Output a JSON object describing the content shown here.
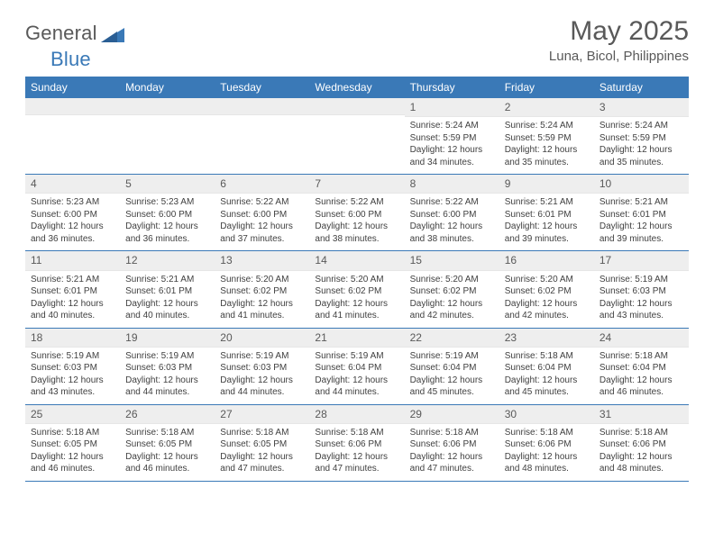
{
  "brand": {
    "name": "General",
    "accent": "Blue"
  },
  "title": "May 2025",
  "location": "Luna, Bicol, Philippines",
  "colors": {
    "header_bg": "#3a79b7",
    "header_text": "#ffffff",
    "grey_bg": "#eeeeee",
    "text": "#595959"
  },
  "layout": {
    "columns": 7,
    "rows": 5,
    "fonts": {
      "title_pt": 30,
      "location_pt": 15,
      "weekday_pt": 12,
      "body_pt": 10
    }
  },
  "weekdays": [
    "Sunday",
    "Monday",
    "Tuesday",
    "Wednesday",
    "Thursday",
    "Friday",
    "Saturday"
  ],
  "weeks": [
    [
      {
        "empty": true
      },
      {
        "empty": true
      },
      {
        "empty": true
      },
      {
        "empty": true
      },
      {
        "n": "1",
        "sr": "Sunrise: 5:24 AM",
        "ss": "Sunset: 5:59 PM",
        "dl1": "Daylight: 12 hours",
        "dl2": "and 34 minutes."
      },
      {
        "n": "2",
        "sr": "Sunrise: 5:24 AM",
        "ss": "Sunset: 5:59 PM",
        "dl1": "Daylight: 12 hours",
        "dl2": "and 35 minutes."
      },
      {
        "n": "3",
        "sr": "Sunrise: 5:24 AM",
        "ss": "Sunset: 5:59 PM",
        "dl1": "Daylight: 12 hours",
        "dl2": "and 35 minutes."
      }
    ],
    [
      {
        "n": "4",
        "sr": "Sunrise: 5:23 AM",
        "ss": "Sunset: 6:00 PM",
        "dl1": "Daylight: 12 hours",
        "dl2": "and 36 minutes."
      },
      {
        "n": "5",
        "sr": "Sunrise: 5:23 AM",
        "ss": "Sunset: 6:00 PM",
        "dl1": "Daylight: 12 hours",
        "dl2": "and 36 minutes."
      },
      {
        "n": "6",
        "sr": "Sunrise: 5:22 AM",
        "ss": "Sunset: 6:00 PM",
        "dl1": "Daylight: 12 hours",
        "dl2": "and 37 minutes."
      },
      {
        "n": "7",
        "sr": "Sunrise: 5:22 AM",
        "ss": "Sunset: 6:00 PM",
        "dl1": "Daylight: 12 hours",
        "dl2": "and 38 minutes."
      },
      {
        "n": "8",
        "sr": "Sunrise: 5:22 AM",
        "ss": "Sunset: 6:00 PM",
        "dl1": "Daylight: 12 hours",
        "dl2": "and 38 minutes."
      },
      {
        "n": "9",
        "sr": "Sunrise: 5:21 AM",
        "ss": "Sunset: 6:01 PM",
        "dl1": "Daylight: 12 hours",
        "dl2": "and 39 minutes."
      },
      {
        "n": "10",
        "sr": "Sunrise: 5:21 AM",
        "ss": "Sunset: 6:01 PM",
        "dl1": "Daylight: 12 hours",
        "dl2": "and 39 minutes."
      }
    ],
    [
      {
        "n": "11",
        "sr": "Sunrise: 5:21 AM",
        "ss": "Sunset: 6:01 PM",
        "dl1": "Daylight: 12 hours",
        "dl2": "and 40 minutes."
      },
      {
        "n": "12",
        "sr": "Sunrise: 5:21 AM",
        "ss": "Sunset: 6:01 PM",
        "dl1": "Daylight: 12 hours",
        "dl2": "and 40 minutes."
      },
      {
        "n": "13",
        "sr": "Sunrise: 5:20 AM",
        "ss": "Sunset: 6:02 PM",
        "dl1": "Daylight: 12 hours",
        "dl2": "and 41 minutes."
      },
      {
        "n": "14",
        "sr": "Sunrise: 5:20 AM",
        "ss": "Sunset: 6:02 PM",
        "dl1": "Daylight: 12 hours",
        "dl2": "and 41 minutes."
      },
      {
        "n": "15",
        "sr": "Sunrise: 5:20 AM",
        "ss": "Sunset: 6:02 PM",
        "dl1": "Daylight: 12 hours",
        "dl2": "and 42 minutes."
      },
      {
        "n": "16",
        "sr": "Sunrise: 5:20 AM",
        "ss": "Sunset: 6:02 PM",
        "dl1": "Daylight: 12 hours",
        "dl2": "and 42 minutes."
      },
      {
        "n": "17",
        "sr": "Sunrise: 5:19 AM",
        "ss": "Sunset: 6:03 PM",
        "dl1": "Daylight: 12 hours",
        "dl2": "and 43 minutes."
      }
    ],
    [
      {
        "n": "18",
        "sr": "Sunrise: 5:19 AM",
        "ss": "Sunset: 6:03 PM",
        "dl1": "Daylight: 12 hours",
        "dl2": "and 43 minutes."
      },
      {
        "n": "19",
        "sr": "Sunrise: 5:19 AM",
        "ss": "Sunset: 6:03 PM",
        "dl1": "Daylight: 12 hours",
        "dl2": "and 44 minutes."
      },
      {
        "n": "20",
        "sr": "Sunrise: 5:19 AM",
        "ss": "Sunset: 6:03 PM",
        "dl1": "Daylight: 12 hours",
        "dl2": "and 44 minutes."
      },
      {
        "n": "21",
        "sr": "Sunrise: 5:19 AM",
        "ss": "Sunset: 6:04 PM",
        "dl1": "Daylight: 12 hours",
        "dl2": "and 44 minutes."
      },
      {
        "n": "22",
        "sr": "Sunrise: 5:19 AM",
        "ss": "Sunset: 6:04 PM",
        "dl1": "Daylight: 12 hours",
        "dl2": "and 45 minutes."
      },
      {
        "n": "23",
        "sr": "Sunrise: 5:18 AM",
        "ss": "Sunset: 6:04 PM",
        "dl1": "Daylight: 12 hours",
        "dl2": "and 45 minutes."
      },
      {
        "n": "24",
        "sr": "Sunrise: 5:18 AM",
        "ss": "Sunset: 6:04 PM",
        "dl1": "Daylight: 12 hours",
        "dl2": "and 46 minutes."
      }
    ],
    [
      {
        "n": "25",
        "sr": "Sunrise: 5:18 AM",
        "ss": "Sunset: 6:05 PM",
        "dl1": "Daylight: 12 hours",
        "dl2": "and 46 minutes."
      },
      {
        "n": "26",
        "sr": "Sunrise: 5:18 AM",
        "ss": "Sunset: 6:05 PM",
        "dl1": "Daylight: 12 hours",
        "dl2": "and 46 minutes."
      },
      {
        "n": "27",
        "sr": "Sunrise: 5:18 AM",
        "ss": "Sunset: 6:05 PM",
        "dl1": "Daylight: 12 hours",
        "dl2": "and 47 minutes."
      },
      {
        "n": "28",
        "sr": "Sunrise: 5:18 AM",
        "ss": "Sunset: 6:06 PM",
        "dl1": "Daylight: 12 hours",
        "dl2": "and 47 minutes."
      },
      {
        "n": "29",
        "sr": "Sunrise: 5:18 AM",
        "ss": "Sunset: 6:06 PM",
        "dl1": "Daylight: 12 hours",
        "dl2": "and 47 minutes."
      },
      {
        "n": "30",
        "sr": "Sunrise: 5:18 AM",
        "ss": "Sunset: 6:06 PM",
        "dl1": "Daylight: 12 hours",
        "dl2": "and 48 minutes."
      },
      {
        "n": "31",
        "sr": "Sunrise: 5:18 AM",
        "ss": "Sunset: 6:06 PM",
        "dl1": "Daylight: 12 hours",
        "dl2": "and 48 minutes."
      }
    ]
  ]
}
